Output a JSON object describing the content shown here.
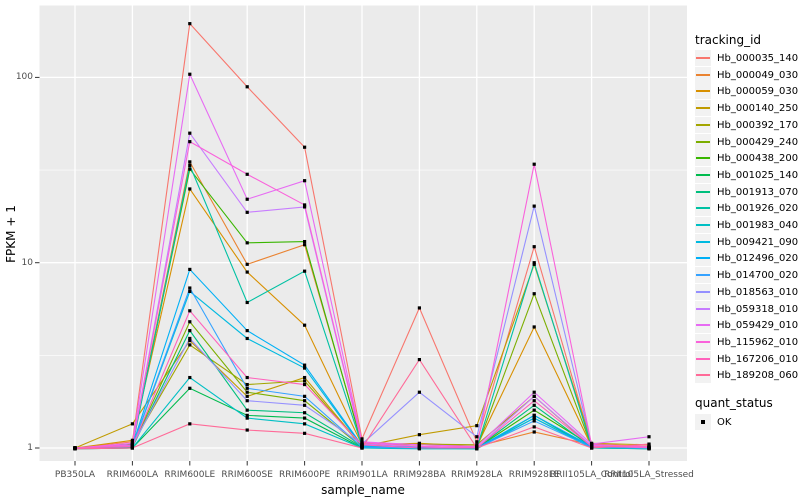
{
  "chart_data": {
    "type": "line",
    "title": "",
    "xlabel": "sample_name",
    "ylabel": "FPKM + 1",
    "y_scale": "log10",
    "y_ticks": [
      1,
      10,
      100
    ],
    "ylim": [
      1,
      245
    ],
    "grid": "on",
    "legend_position": "right",
    "categories": [
      "PB350LA",
      "RRIM600LA",
      "RRIM600LE",
      "RRIM600SE",
      "RRIM600PE",
      "RRIM901LA",
      "RRIM928BA",
      "RRIM928LA",
      "RRIM928LE",
      "RRII105LA_Control",
      "RRII105LA_Stressed"
    ],
    "series": [
      {
        "name": "Hb_000035_140",
        "color": "#F8766D",
        "values": [
          1.0,
          1.08,
          195,
          89,
          42,
          1.12,
          5.7,
          1.08,
          12.2,
          1.05,
          1.02
        ]
      },
      {
        "name": "Hb_000049_030",
        "color": "#EA8331",
        "values": [
          1.0,
          1.04,
          35,
          9.8,
          12.5,
          1.06,
          1.04,
          1.02,
          1.22,
          1.04,
          1.0
        ]
      },
      {
        "name": "Hb_000059_030",
        "color": "#D89000",
        "values": [
          1.0,
          1.1,
          25,
          8.9,
          4.6,
          1.04,
          1.06,
          1.02,
          4.5,
          1.02,
          1.0
        ]
      },
      {
        "name": "Hb_000140_250",
        "color": "#C09B00",
        "values": [
          1.0,
          1.35,
          3.8,
          1.9,
          2.4,
          1.02,
          1.18,
          1.32,
          9.8,
          1.06,
          1.04
        ]
      },
      {
        "name": "Hb_000392_170",
        "color": "#A3A500",
        "values": [
          1.0,
          1.05,
          3.6,
          2.2,
          2.3,
          1.02,
          1.05,
          1.04,
          1.9,
          1.02,
          1.0
        ]
      },
      {
        "name": "Hb_000429_240",
        "color": "#7CAE00",
        "values": [
          0.99,
          1.02,
          4.8,
          2.0,
          1.8,
          1.01,
          1.02,
          1.0,
          6.8,
          1.02,
          1.01
        ]
      },
      {
        "name": "Hb_000438_200",
        "color": "#39B600",
        "values": [
          1.0,
          1.05,
          32,
          12.8,
          13.0,
          1.04,
          1.0,
          1.0,
          1.6,
          1.03,
          1.0
        ]
      },
      {
        "name": "Hb_001025_140",
        "color": "#00BB4E",
        "values": [
          0.99,
          1.0,
          2.1,
          1.5,
          1.45,
          1.0,
          1.0,
          0.99,
          1.5,
          1.0,
          0.99
        ]
      },
      {
        "name": "Hb_001913_070",
        "color": "#00BF7D",
        "values": [
          1.0,
          1.01,
          4.3,
          1.6,
          1.55,
          1.01,
          1.0,
          1.0,
          1.7,
          1.01,
          1.0
        ]
      },
      {
        "name": "Hb_001926_020",
        "color": "#00C1A3",
        "values": [
          1.0,
          1.02,
          33.5,
          6.1,
          9.0,
          1.03,
          1.01,
          1.0,
          10.0,
          1.02,
          1.0
        ]
      },
      {
        "name": "Hb_001983_040",
        "color": "#00BFC4",
        "values": [
          0.99,
          1.0,
          2.4,
          1.45,
          1.35,
          1.0,
          0.99,
          0.99,
          1.45,
          1.0,
          0.99
        ]
      },
      {
        "name": "Hb_009421_090",
        "color": "#00BAE0",
        "values": [
          1.0,
          1.02,
          7.0,
          3.9,
          2.7,
          1.02,
          1.0,
          1.0,
          1.45,
          1.01,
          1.0
        ]
      },
      {
        "name": "Hb_012496_020",
        "color": "#00B0F6",
        "values": [
          1.0,
          1.03,
          9.2,
          4.3,
          2.8,
          1.03,
          1.01,
          1.0,
          1.5,
          1.02,
          1.0
        ]
      },
      {
        "name": "Hb_014700_020",
        "color": "#35A2FF",
        "values": [
          1.0,
          1.02,
          7.3,
          2.1,
          1.9,
          1.01,
          1.0,
          1.0,
          1.4,
          1.01,
          1.0
        ]
      },
      {
        "name": "Hb_018563_010",
        "color": "#9590FF",
        "values": [
          1.0,
          1.03,
          3.9,
          1.8,
          1.7,
          1.05,
          2.0,
          1.15,
          20.2,
          1.04,
          1.01
        ]
      },
      {
        "name": "Hb_059318_010",
        "color": "#C77CFF",
        "values": [
          1.0,
          1.04,
          50,
          18.7,
          20.0,
          1.05,
          1.02,
          1.0,
          1.9,
          1.03,
          1.0
        ]
      },
      {
        "name": "Hb_059429_010",
        "color": "#E76BF3",
        "values": [
          1.0,
          1.06,
          104,
          22,
          27.7,
          1.08,
          1.04,
          1.02,
          2.0,
          1.05,
          1.15
        ]
      },
      {
        "name": "Hb_115962_010",
        "color": "#FA62DB",
        "values": [
          1.0,
          1.04,
          45,
          30,
          20.5,
          1.07,
          1.02,
          1.01,
          34,
          1.04,
          1.02
        ]
      },
      {
        "name": "Hb_167206_010",
        "color": "#FF62BC",
        "values": [
          1.0,
          1.02,
          5.5,
          2.4,
          2.2,
          1.04,
          1.0,
          1.0,
          1.8,
          1.02,
          1.01
        ]
      },
      {
        "name": "Hb_189208_060",
        "color": "#FF6A98",
        "values": [
          0.99,
          1.0,
          1.35,
          1.25,
          1.2,
          1.0,
          3.0,
          1.0,
          1.3,
          1.0,
          1.05
        ]
      }
    ],
    "legend": {
      "color_title": "tracking_id",
      "shape_title": "quant_status",
      "shape_items": [
        {
          "label": "OK"
        }
      ]
    },
    "point_shape": "square",
    "colors": {
      "panel_background": "#EBEBEB",
      "grid": "#FFFFFF",
      "axis_text": "#4D4D4D",
      "legend_key_background": "#F2F2F2",
      "point": "#000000"
    }
  }
}
